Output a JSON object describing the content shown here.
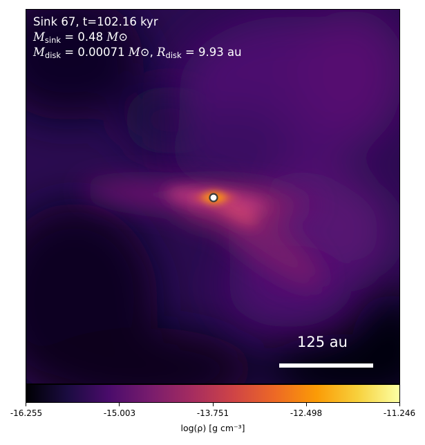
{
  "chart_data": {
    "type": "heatmap",
    "title_lines": [
      "Sink 67, t=102.16 kyr",
      "M_sink = 0.48 M_⊙",
      "M_disk = 0.00071 M_⊙, R_disk = 9.93 au"
    ],
    "annotation": {
      "sink_label": "Sink 67",
      "time": "t=102.16 kyr",
      "m_sink_value": "0.48",
      "m_disk_value": "0.00071",
      "r_disk_value": "9.93",
      "unit_msun": "M⊙",
      "unit_au": "au"
    },
    "scale_bar": {
      "label": "125 au",
      "length_au": 125
    },
    "colormap": "inferno",
    "colorbar": {
      "label": "log(ρ) [g cm⁻³]",
      "range": [
        -16.255,
        -11.246
      ],
      "tick_values": [
        -16.255,
        -15.003,
        -13.751,
        -12.498,
        -11.246
      ],
      "tick_labels": [
        "-16.255",
        "-15.003",
        "-13.751",
        "-12.498",
        "-11.246"
      ]
    },
    "sink_marker": {
      "shape": "circle",
      "color": "#ffffff"
    }
  }
}
